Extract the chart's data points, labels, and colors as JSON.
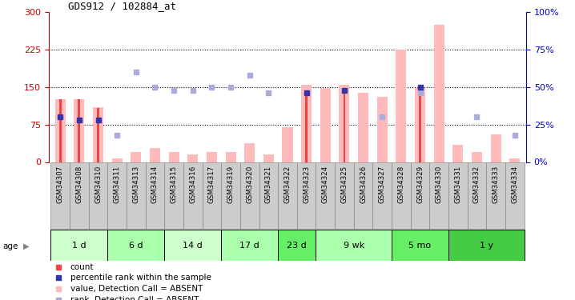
{
  "title": "GDS912 / 102884_at",
  "samples": [
    "GSM34307",
    "GSM34308",
    "GSM34310",
    "GSM34311",
    "GSM34313",
    "GSM34314",
    "GSM34315",
    "GSM34316",
    "GSM34317",
    "GSM34319",
    "GSM34320",
    "GSM34321",
    "GSM34322",
    "GSM34323",
    "GSM34324",
    "GSM34325",
    "GSM34326",
    "GSM34327",
    "GSM34328",
    "GSM34329",
    "GSM34330",
    "GSM34331",
    "GSM34332",
    "GSM34333",
    "GSM34334"
  ],
  "absent_values": [
    125,
    125,
    110,
    8,
    20,
    28,
    20,
    15,
    20,
    20,
    38,
    15,
    70,
    155,
    148,
    155,
    138,
    130,
    225,
    148,
    275,
    35,
    20,
    55,
    8
  ],
  "absent_ranks": [
    null,
    null,
    null,
    18,
    60,
    50,
    48,
    48,
    50,
    50,
    58,
    46,
    null,
    null,
    null,
    48,
    null,
    30,
    null,
    46,
    null,
    null,
    30,
    null,
    18
  ],
  "present_values": [
    125,
    125,
    108,
    null,
    null,
    null,
    null,
    null,
    null,
    null,
    null,
    null,
    null,
    138,
    null,
    148,
    null,
    null,
    null,
    145,
    null,
    null,
    null,
    null,
    null
  ],
  "present_ranks": [
    30,
    28,
    28,
    null,
    null,
    null,
    null,
    null,
    null,
    null,
    null,
    null,
    null,
    46,
    null,
    48,
    null,
    null,
    null,
    50,
    null,
    null,
    null,
    null,
    null
  ],
  "age_groups": [
    {
      "label": "1 d",
      "start": 0,
      "end": 3,
      "color": "#ccffcc"
    },
    {
      "label": "6 d",
      "start": 3,
      "end": 6,
      "color": "#aaffaa"
    },
    {
      "label": "14 d",
      "start": 6,
      "end": 9,
      "color": "#ccffcc"
    },
    {
      "label": "17 d",
      "start": 9,
      "end": 12,
      "color": "#aaffaa"
    },
    {
      "label": "23 d",
      "start": 12,
      "end": 14,
      "color": "#66ee66"
    },
    {
      "label": "9 wk",
      "start": 14,
      "end": 18,
      "color": "#aaffaa"
    },
    {
      "label": "5 mo",
      "start": 18,
      "end": 21,
      "color": "#66ee66"
    },
    {
      "label": "1 y",
      "start": 21,
      "end": 25,
      "color": "#44cc44"
    }
  ],
  "ylim_left": [
    0,
    300
  ],
  "ylim_right": [
    0,
    100
  ],
  "yticks_left": [
    0,
    75,
    150,
    225,
    300
  ],
  "yticks_right": [
    0,
    25,
    50,
    75,
    100
  ],
  "absent_bar_color": "#ffbbbb",
  "absent_rank_color": "#aaaadd",
  "present_bar_color": "#ee4444",
  "present_rank_color": "#3333aa",
  "tick_color_left": "#cc0000",
  "tick_color_right": "#0000cc",
  "sample_box_color": "#cccccc",
  "sample_box_edge": "#888888"
}
